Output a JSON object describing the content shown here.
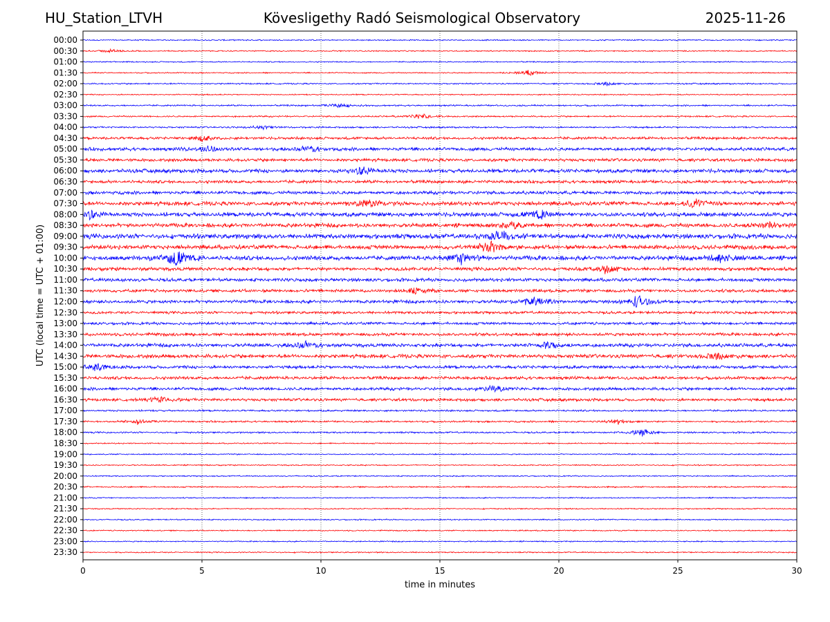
{
  "header": {
    "station": "HU_Station_LTVH",
    "title": "Kövesligethy Radó Seismological Observatory",
    "date": "2025-11-26"
  },
  "chart_data": {
    "type": "line",
    "subtype": "helicorder",
    "xlabel": "time in minutes",
    "ylabel": "UTC (local time = UTC + 01:00)",
    "xlim": [
      0,
      30
    ],
    "x_ticks": [
      0,
      5,
      10,
      15,
      20,
      25,
      30
    ],
    "grid": "vertical dotted at 5-minute intervals",
    "colors": [
      "#0000ff",
      "#ff0000"
    ],
    "rows": [
      "00:00",
      "00:30",
      "01:00",
      "01:30",
      "02:00",
      "02:30",
      "03:00",
      "03:30",
      "04:00",
      "04:30",
      "05:00",
      "05:30",
      "06:00",
      "06:30",
      "07:00",
      "07:30",
      "08:00",
      "08:30",
      "09:00",
      "09:30",
      "10:00",
      "10:30",
      "11:00",
      "11:30",
      "12:00",
      "12:30",
      "13:00",
      "13:30",
      "14:00",
      "14:30",
      "15:00",
      "15:30",
      "16:00",
      "16:30",
      "17:00",
      "17:30",
      "18:00",
      "18:30",
      "19:00",
      "19:30",
      "20:00",
      "20:30",
      "21:00",
      "21:30",
      "22:00",
      "22:30",
      "23:00",
      "23:30"
    ],
    "noise_level": [
      1,
      1,
      1,
      1,
      1.2,
      1,
      1.3,
      1.3,
      1.4,
      2.2,
      2.8,
      2.6,
      3.2,
      2.6,
      2.8,
      3.4,
      3.6,
      3.4,
      4,
      3.6,
      3.8,
      3,
      2.8,
      2.6,
      2.8,
      2.2,
      2.3,
      2.6,
      3,
      3.2,
      2.6,
      2.6,
      2.6,
      2.4,
      1.5,
      1.5,
      1.4,
      1,
      1,
      1,
      1,
      1.2,
      1,
      1,
      1,
      1,
      1,
      1
    ],
    "events": [
      {
        "row": 1,
        "minute": 1.2,
        "amp": 3
      },
      {
        "row": 3,
        "minute": 18.7,
        "amp": 5
      },
      {
        "row": 4,
        "minute": 22,
        "amp": 3
      },
      {
        "row": 6,
        "minute": 10.8,
        "amp": 4
      },
      {
        "row": 7,
        "minute": 14.2,
        "amp": 5
      },
      {
        "row": 8,
        "minute": 7.5,
        "amp": 3
      },
      {
        "row": 9,
        "minute": 5,
        "amp": 4
      },
      {
        "row": 10,
        "minute": 5.3,
        "amp": 5
      },
      {
        "row": 10,
        "minute": 9.5,
        "amp": 5
      },
      {
        "row": 12,
        "minute": 11.8,
        "amp": 7
      },
      {
        "row": 15,
        "minute": 12,
        "amp": 7
      },
      {
        "row": 15,
        "minute": 25.8,
        "amp": 8
      },
      {
        "row": 16,
        "minute": 0.3,
        "amp": 6
      },
      {
        "row": 16,
        "minute": 19.2,
        "amp": 6
      },
      {
        "row": 17,
        "minute": 18,
        "amp": 6
      },
      {
        "row": 17,
        "minute": 28.8,
        "amp": 6
      },
      {
        "row": 18,
        "minute": 17.5,
        "amp": 10
      },
      {
        "row": 19,
        "minute": 17.1,
        "amp": 10
      },
      {
        "row": 20,
        "minute": 3.9,
        "amp": 14
      },
      {
        "row": 20,
        "minute": 15.9,
        "amp": 9
      },
      {
        "row": 20,
        "minute": 26.8,
        "amp": 7
      },
      {
        "row": 21,
        "minute": 22,
        "amp": 6
      },
      {
        "row": 23,
        "minute": 14,
        "amp": 5
      },
      {
        "row": 24,
        "minute": 19,
        "amp": 9
      },
      {
        "row": 24,
        "minute": 23.3,
        "amp": 11
      },
      {
        "row": 28,
        "minute": 9.3,
        "amp": 6
      },
      {
        "row": 28,
        "minute": 19.5,
        "amp": 7
      },
      {
        "row": 29,
        "minute": 26.6,
        "amp": 6
      },
      {
        "row": 30,
        "minute": 0.6,
        "amp": 5
      },
      {
        "row": 32,
        "minute": 17.3,
        "amp": 5
      },
      {
        "row": 33,
        "minute": 3.2,
        "amp": 5
      },
      {
        "row": 35,
        "minute": 2.3,
        "amp": 4
      },
      {
        "row": 35,
        "minute": 22.5,
        "amp": 4
      },
      {
        "row": 36,
        "minute": 23.5,
        "amp": 6
      }
    ]
  }
}
